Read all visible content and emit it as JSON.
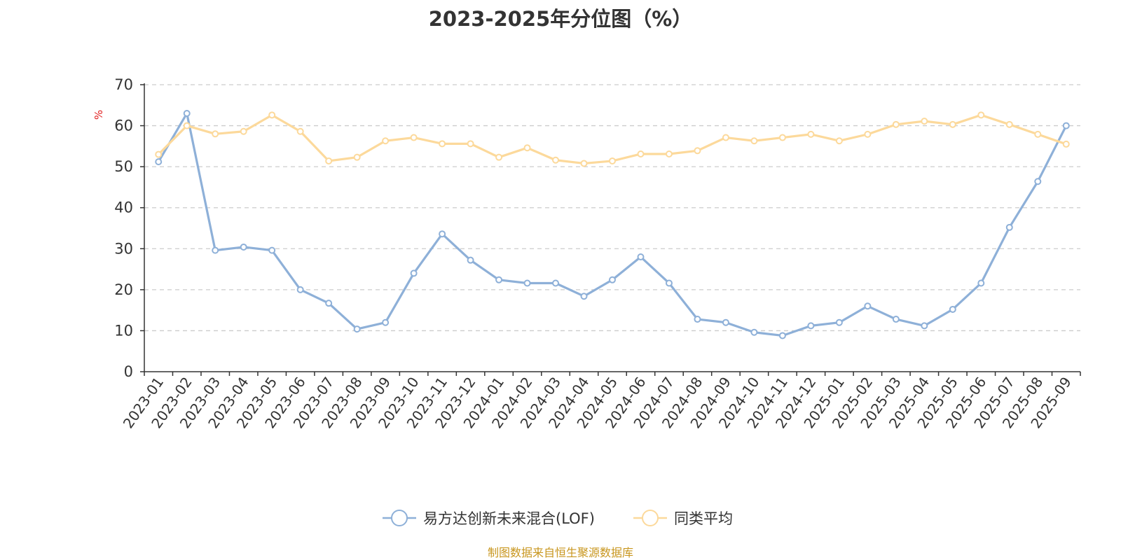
{
  "chart_data": {
    "type": "line",
    "title": "2023-2025年分位图（%）",
    "ylabel": "%",
    "ylim": [
      0,
      70
    ],
    "yticks": [
      0,
      10,
      20,
      30,
      40,
      50,
      60,
      70
    ],
    "grid": true,
    "legend_position": "bottom",
    "categories": [
      "2023-01",
      "2023-02",
      "2023-03",
      "2023-04",
      "2023-05",
      "2023-06",
      "2023-07",
      "2023-08",
      "2023-09",
      "2023-10",
      "2023-11",
      "2023-12",
      "2024-01",
      "2024-02",
      "2024-03",
      "2024-04",
      "2024-05",
      "2024-06",
      "2024-07",
      "2024-08",
      "2024-09",
      "2024-10",
      "2024-11",
      "2024-12",
      "2025-01",
      "2025-02",
      "2025-03",
      "2025-04",
      "2025-05",
      "2025-06",
      "2025-07",
      "2025-08",
      "2025-09"
    ],
    "series": [
      {
        "name": "易方达创新未来混合(LOF)",
        "color": "#8eb0d8",
        "values": [
          51.2,
          63.0,
          29.6,
          30.4,
          29.6,
          20.0,
          16.7,
          10.4,
          12.0,
          24.0,
          33.6,
          27.2,
          22.4,
          21.6,
          21.6,
          18.4,
          22.4,
          28.0,
          21.6,
          12.8,
          12.0,
          9.6,
          8.8,
          11.2,
          12.0,
          16.0,
          12.8,
          11.2,
          15.2,
          21.6,
          35.2,
          46.4,
          60.0
        ]
      },
      {
        "name": "同类平均",
        "color": "#fcd99b",
        "values": [
          53.0,
          60.0,
          58.0,
          58.6,
          62.6,
          58.6,
          51.4,
          52.3,
          56.3,
          57.1,
          55.6,
          55.6,
          52.3,
          54.6,
          51.6,
          50.8,
          51.4,
          53.1,
          53.1,
          53.9,
          57.1,
          56.3,
          57.1,
          57.9,
          56.3,
          57.9,
          60.3,
          61.1,
          60.3,
          62.6,
          60.3,
          57.9,
          55.5
        ]
      }
    ]
  },
  "footer": {
    "source": "制图数据来自恒生聚源数据库"
  }
}
